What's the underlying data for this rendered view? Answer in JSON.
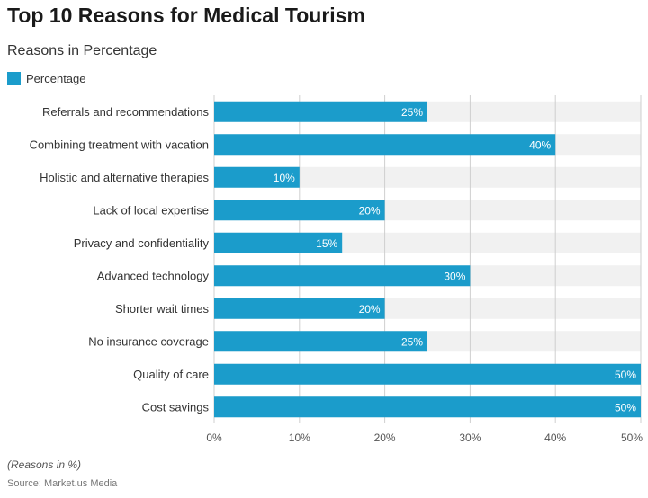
{
  "title": "Top 10 Reasons for Medical Tourism",
  "subtitle": "Reasons in Percentage",
  "note": "(Reasons in %)",
  "source": "Source: Market.us Media",
  "colors": {
    "bar": "#1b9ccb",
    "track": "#f1f1f1",
    "grid": "#cfcfcf",
    "axis_text": "#555555",
    "label_text": "#333333"
  },
  "chart_data": {
    "type": "bar",
    "orientation": "horizontal",
    "title": "Top 10 Reasons for Medical Tourism",
    "subtitle": "Reasons in Percentage",
    "categories": [
      "Referrals and recommendations",
      "Combining treatment with vacation",
      "Holistic and alternative therapies",
      "Lack of local expertise",
      "Privacy and confidentiality",
      "Advanced technology",
      "Shorter wait times",
      "No insurance coverage",
      "Quality of care",
      "Cost savings"
    ],
    "series": [
      {
        "name": "Percentage",
        "values": [
          25,
          40,
          10,
          20,
          15,
          30,
          20,
          25,
          50,
          50
        ]
      }
    ],
    "xlim": [
      0,
      50
    ],
    "xticks": [
      "0%",
      "10%",
      "20%",
      "30%",
      "40%",
      "50%"
    ],
    "tick_values": [
      0,
      10,
      20,
      30,
      40,
      50
    ],
    "value_suffix": "%",
    "grid": true,
    "legend_position": "top-left"
  }
}
